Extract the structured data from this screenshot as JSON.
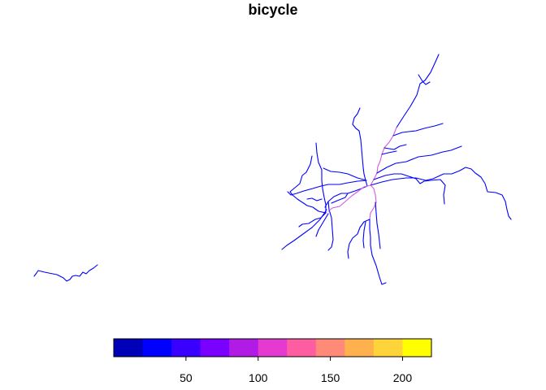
{
  "map": {
    "title": "bicycle",
    "background": "#ffffff",
    "legend": {
      "type": "continuous-color-key",
      "range": [
        0,
        220
      ],
      "bins": [
        0,
        20,
        40,
        60,
        80,
        100,
        120,
        140,
        160,
        180,
        200,
        220
      ],
      "colors": [
        "#0000B8",
        "#0000FF",
        "#3A00FF",
        "#7A00FF",
        "#B01CE6",
        "#E53ACF",
        "#FF5DA2",
        "#FF8A78",
        "#FFB14E",
        "#FFD43A",
        "#FFFF00"
      ],
      "ticks": [
        {
          "value": 50,
          "label": "50"
        },
        {
          "value": 100,
          "label": "100"
        },
        {
          "value": 150,
          "label": "150"
        },
        {
          "value": 200,
          "label": "200"
        }
      ]
    },
    "segment_colors": {
      "low": "#0000FF",
      "medium": "#A020F0",
      "high": "#D45AE0"
    }
  }
}
